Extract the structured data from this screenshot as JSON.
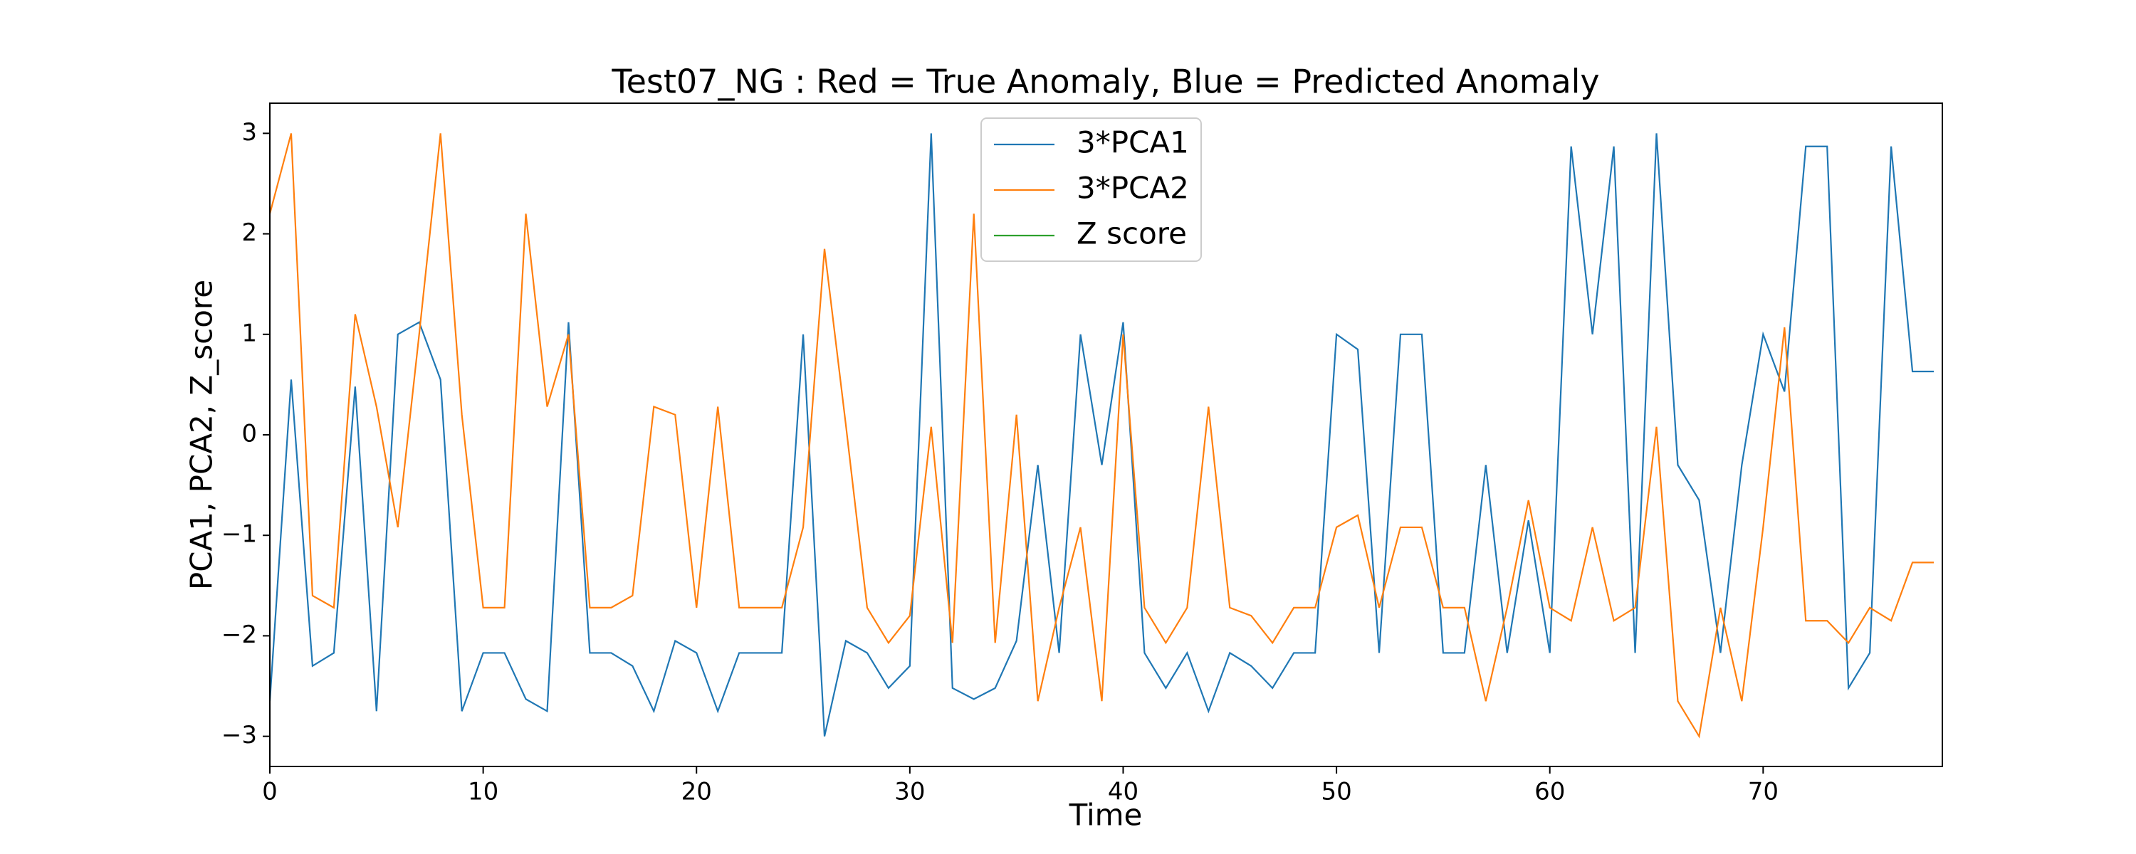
{
  "chart_data": {
    "type": "line",
    "title": "Test07_NG : Red = True Anomaly, Blue = Predicted Anomaly",
    "xlabel": "Time",
    "ylabel": "PCA1, PCA2, Z_score",
    "x": [
      0,
      1,
      2,
      3,
      4,
      5,
      6,
      7,
      8,
      9,
      10,
      11,
      12,
      13,
      14,
      15,
      16,
      17,
      18,
      19,
      20,
      21,
      22,
      23,
      24,
      25,
      26,
      27,
      28,
      29,
      30,
      31,
      32,
      33,
      34,
      35,
      36,
      37,
      38,
      39,
      40,
      41,
      42,
      43,
      44,
      45,
      46,
      47,
      48,
      49,
      50,
      51,
      52,
      53,
      54,
      55,
      56,
      57,
      58,
      59,
      60,
      61,
      62,
      63,
      64,
      65,
      66,
      67,
      68,
      69,
      70,
      71,
      72,
      73,
      74,
      75,
      76,
      77,
      78
    ],
    "series": [
      {
        "name": "3*PCA1",
        "color": "#1f77b4",
        "values": [
          -2.65,
          0.55,
          -2.3,
          -2.17,
          0.48,
          -2.75,
          1.0,
          1.12,
          0.55,
          -2.75,
          -2.17,
          -2.17,
          -2.63,
          -2.75,
          1.12,
          -2.17,
          -2.17,
          -2.3,
          -2.75,
          -2.05,
          -2.17,
          -2.75,
          -2.17,
          -2.17,
          -2.17,
          1.0,
          -3.0,
          -2.05,
          -2.17,
          -2.52,
          -2.3,
          3.0,
          -2.52,
          -2.63,
          -2.52,
          -2.05,
          -0.3,
          -2.17,
          1.0,
          -0.3,
          1.12,
          -2.17,
          -2.52,
          -2.17,
          -2.75,
          -2.17,
          -2.3,
          -2.52,
          -2.17,
          -2.17,
          1.0,
          0.85,
          -2.17,
          1.0,
          1.0,
          -2.17,
          -2.17,
          -0.3,
          -2.17,
          -0.85,
          -2.17,
          2.87,
          1.0,
          2.87,
          -2.17,
          3.0,
          -0.3,
          -0.65,
          -2.17,
          -0.3,
          1.0,
          0.43,
          2.87,
          2.87,
          -2.52,
          -2.17,
          2.87,
          0.63,
          0.63
        ]
      },
      {
        "name": "3*PCA2",
        "color": "#ff7f0e",
        "values": [
          2.2,
          3.0,
          -1.6,
          -1.72,
          1.2,
          0.28,
          -0.92,
          1.0,
          3.0,
          0.2,
          -1.72,
          -1.72,
          2.2,
          0.28,
          1.0,
          -1.72,
          -1.72,
          -1.6,
          0.28,
          0.2,
          -1.72,
          0.28,
          -1.72,
          -1.72,
          -1.72,
          -0.92,
          1.85,
          0.1,
          -1.72,
          -2.07,
          -1.8,
          0.08,
          -2.07,
          2.2,
          -2.07,
          0.2,
          -2.65,
          -1.72,
          -0.92,
          -2.65,
          1.0,
          -1.72,
          -2.07,
          -1.72,
          0.28,
          -1.72,
          -1.8,
          -2.07,
          -1.72,
          -1.72,
          -0.92,
          -0.8,
          -1.72,
          -0.92,
          -0.92,
          -1.72,
          -1.72,
          -2.65,
          -1.72,
          -0.65,
          -1.72,
          -1.85,
          -0.92,
          -1.85,
          -1.72,
          0.08,
          -2.65,
          -3.0,
          -1.72,
          -2.65,
          -0.92,
          1.07,
          -1.85,
          -1.85,
          -2.07,
          -1.72,
          -1.85,
          -1.27,
          -1.27
        ]
      },
      {
        "name": "Z score",
        "color": "#2ca02c",
        "values": [
          null,
          null,
          null,
          null,
          null,
          null,
          null,
          null,
          null,
          null,
          null,
          null,
          null,
          null,
          null,
          null,
          null,
          null,
          null,
          null,
          null,
          null,
          null,
          null,
          null,
          null,
          null,
          null,
          null,
          null,
          null,
          null,
          null,
          null,
          null,
          null,
          null,
          null,
          null,
          null,
          null,
          null,
          null,
          null,
          null,
          null,
          null,
          null,
          null,
          null,
          null,
          null,
          null,
          null,
          null,
          null,
          null,
          null,
          null,
          null,
          null,
          null,
          null,
          null,
          null,
          null,
          null,
          null,
          null,
          null,
          null,
          null,
          null,
          null,
          null,
          null,
          null,
          null,
          null
        ]
      }
    ],
    "xlim": [
      0,
      78.4
    ],
    "ylim": [
      -3.3,
      3.3
    ],
    "xticks": [
      0,
      10,
      20,
      30,
      40,
      50,
      60,
      70
    ],
    "yticks": [
      {
        "value": -3,
        "label": "−3"
      },
      {
        "value": -2,
        "label": "−2"
      },
      {
        "value": -1,
        "label": "−1"
      },
      0,
      1,
      2,
      3
    ],
    "legend": "upper center"
  }
}
